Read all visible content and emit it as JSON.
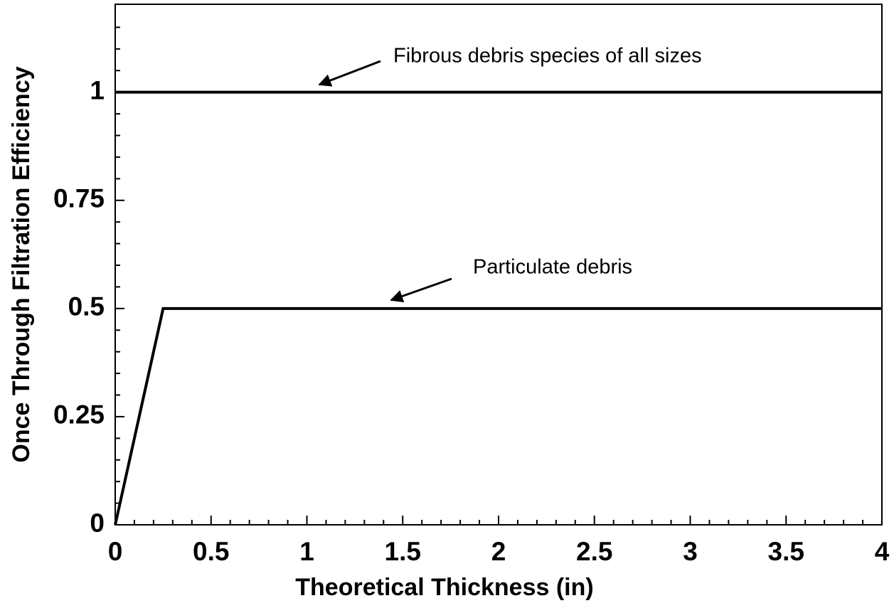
{
  "chart_data": {
    "type": "line",
    "xlabel": "Theoretical Thickness (in)",
    "ylabel": "Once Through Filtration Efficiency",
    "xlim": [
      0,
      4
    ],
    "ylim": [
      0,
      1.2
    ],
    "xticks": [
      0,
      0.5,
      1,
      1.5,
      2,
      2.5,
      3,
      3.5,
      4
    ],
    "yticks": [
      0,
      0.25,
      0.5,
      0.75,
      1
    ],
    "xminorticks": [
      0.1,
      0.2,
      0.3,
      0.4,
      0.6,
      0.7,
      0.8,
      0.9,
      1.1,
      1.2,
      1.3,
      1.4,
      1.6,
      1.7,
      1.8,
      1.9,
      2.1,
      2.2,
      2.3,
      2.4,
      2.6,
      2.7,
      2.8,
      2.9,
      3.1,
      3.2,
      3.3,
      3.4,
      3.6,
      3.7,
      3.8,
      3.9
    ],
    "yminorticks": [
      0.05,
      0.1,
      0.15,
      0.2,
      0.3,
      0.35,
      0.4,
      0.45,
      0.55,
      0.6,
      0.65,
      0.7,
      0.8,
      0.85,
      0.9,
      0.95,
      1.05,
      1.1,
      1.15
    ],
    "series": [
      {
        "x": [
          0,
          4
        ],
        "values": [
          1,
          1
        ],
        "color": "#000000"
      },
      {
        "x": [
          0,
          0.25,
          4
        ],
        "values": [
          0,
          0.5,
          0.5
        ],
        "color": "#000000"
      }
    ],
    "annotations": [
      {
        "text": "Fibrous debris species of all sizes"
      },
      {
        "text": "Particulate debris"
      }
    ]
  }
}
